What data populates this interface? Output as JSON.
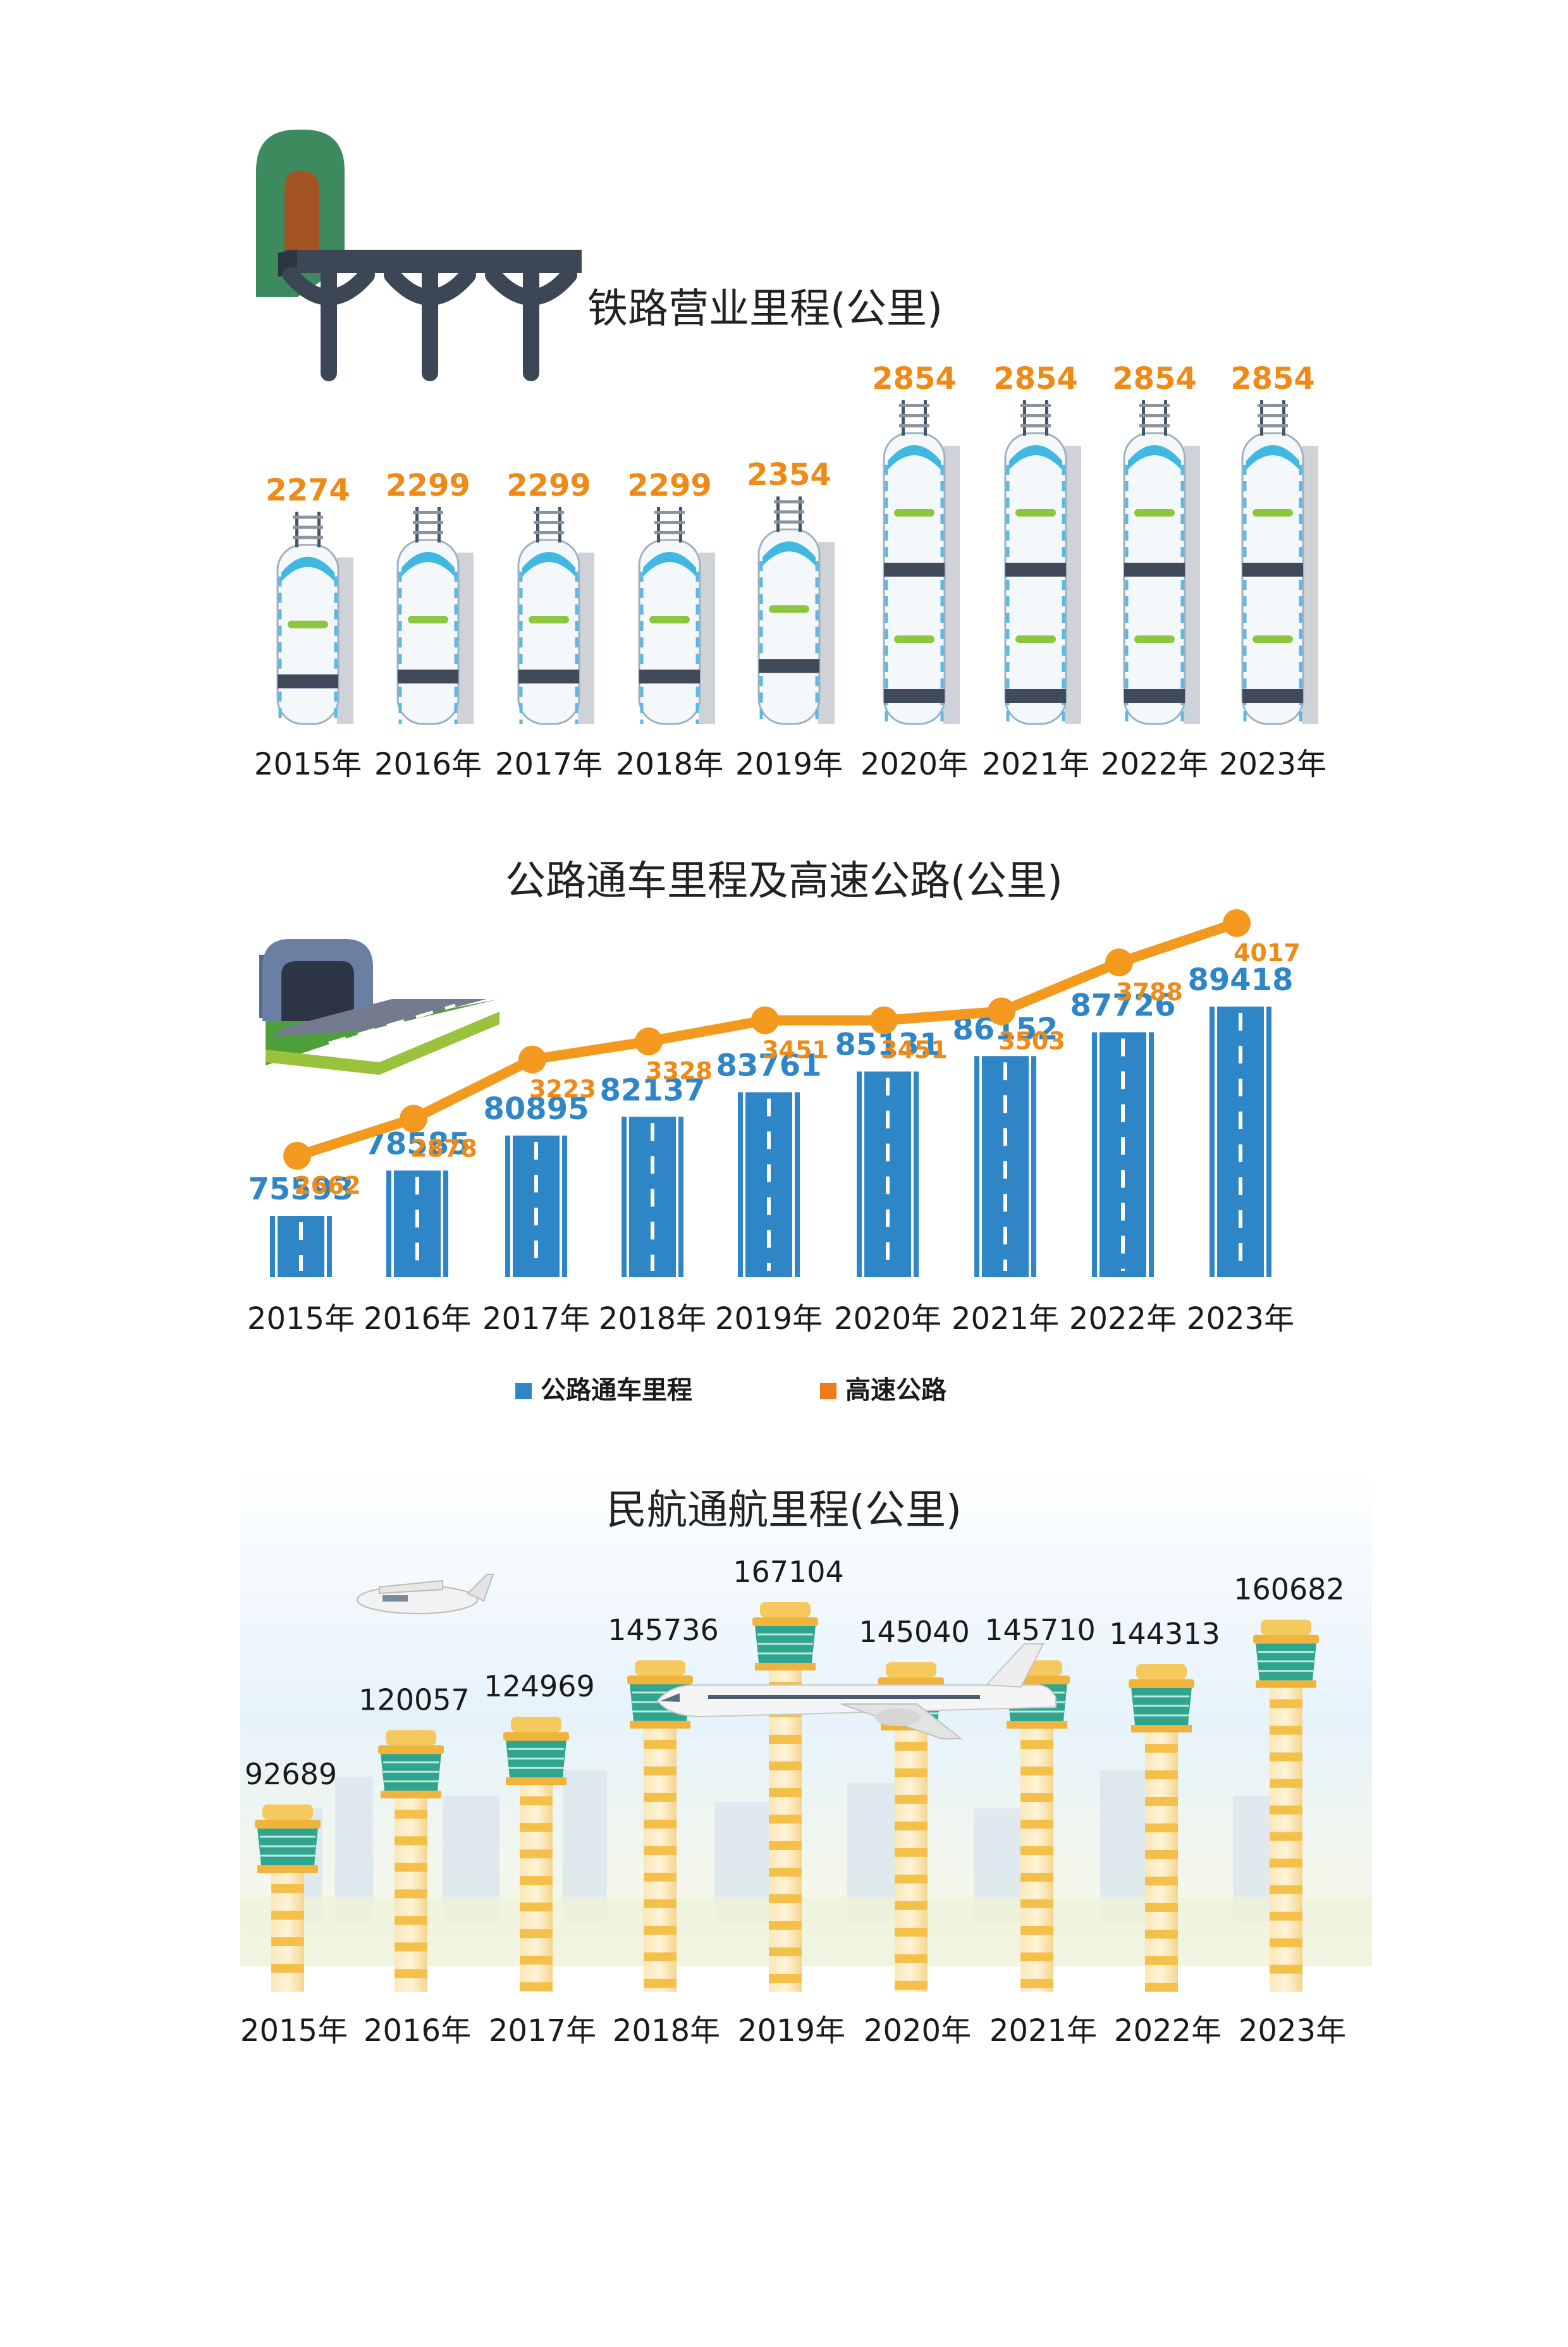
{
  "chart_data": [
    {
      "type": "bar",
      "title": "铁路营业里程(公里)",
      "categories": [
        "2015年",
        "2016年",
        "2017年",
        "2018年",
        "2019年",
        "2020年",
        "2021年",
        "2022年",
        "2023年"
      ],
      "values": [
        2274,
        2299,
        2299,
        2299,
        2354,
        2854,
        2854,
        2854,
        2854
      ],
      "color": "#ef8a17"
    },
    {
      "type": "bar",
      "title": "公路通车里程及高速公路(公里)",
      "categories": [
        "2015年",
        "2016年",
        "2017年",
        "2018年",
        "2019年",
        "2020年",
        "2021年",
        "2022年",
        "2023年"
      ],
      "series": [
        {
          "name": "公路通车里程",
          "type": "bar",
          "color": "#2f86c6",
          "values": [
            75593,
            78585,
            80895,
            82137,
            83761,
            85131,
            86152,
            87726,
            89418
          ]
        },
        {
          "name": "高速公路",
          "type": "line",
          "color": "#f39a1e",
          "values": [
            2662,
            2878,
            3223,
            3328,
            3451,
            3451,
            3503,
            3788,
            4017
          ]
        }
      ],
      "legend_position": "bottom"
    },
    {
      "type": "bar",
      "title": "民航通航里程(公里)",
      "categories": [
        "2015年",
        "2016年",
        "2017年",
        "2018年",
        "2019年",
        "2020年",
        "2021年",
        "2022年",
        "2023年"
      ],
      "values": [
        92689,
        120057,
        124969,
        145736,
        167104,
        145040,
        145710,
        144313,
        160682
      ],
      "color": "#f6c86a"
    }
  ]
}
